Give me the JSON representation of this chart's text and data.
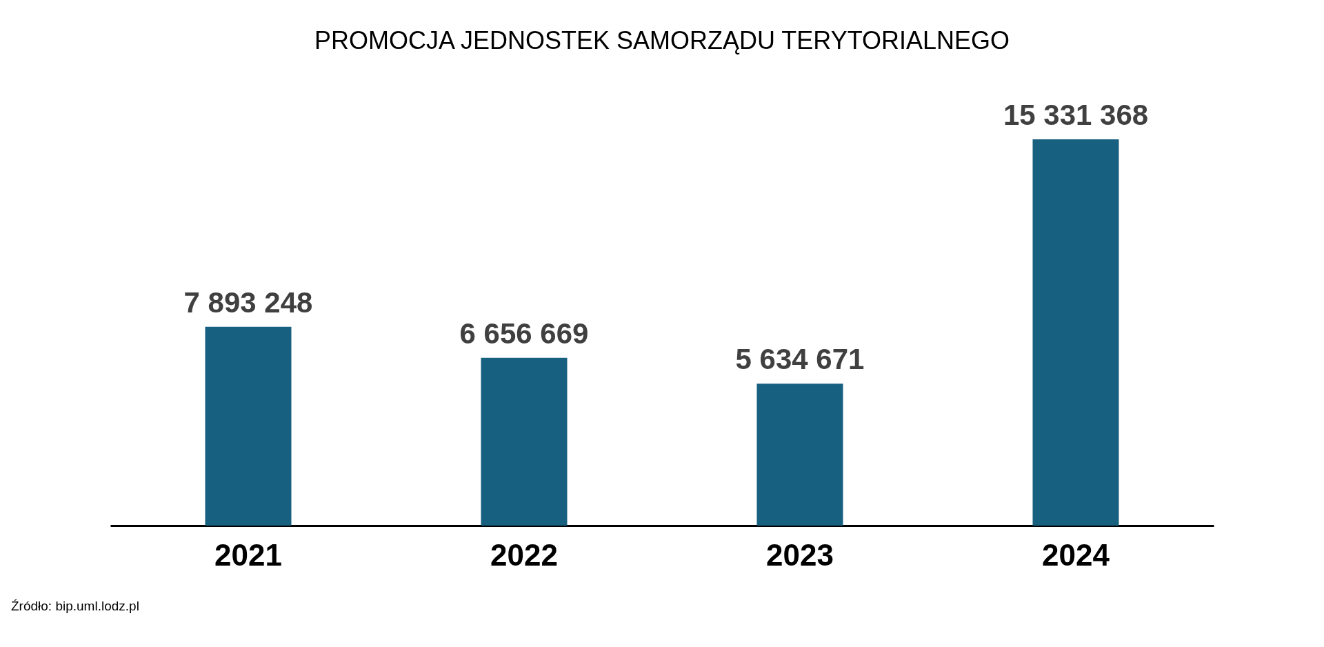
{
  "chart_data": {
    "type": "bar",
    "title": "PROMOCJA JEDNOSTEK SAMORZĄDU TERYTORIALNEGO",
    "categories": [
      "2021",
      "2022",
      "2023",
      "2024"
    ],
    "values": [
      7893248,
      6656669,
      5634671,
      15331368
    ],
    "value_labels": [
      "7 893 248",
      "6 656 669",
      "5 634 671",
      "15 331 368"
    ],
    "color": "#17607f",
    "annotations": [
      "Źródło: bip.uml.lodz.pl"
    ]
  }
}
